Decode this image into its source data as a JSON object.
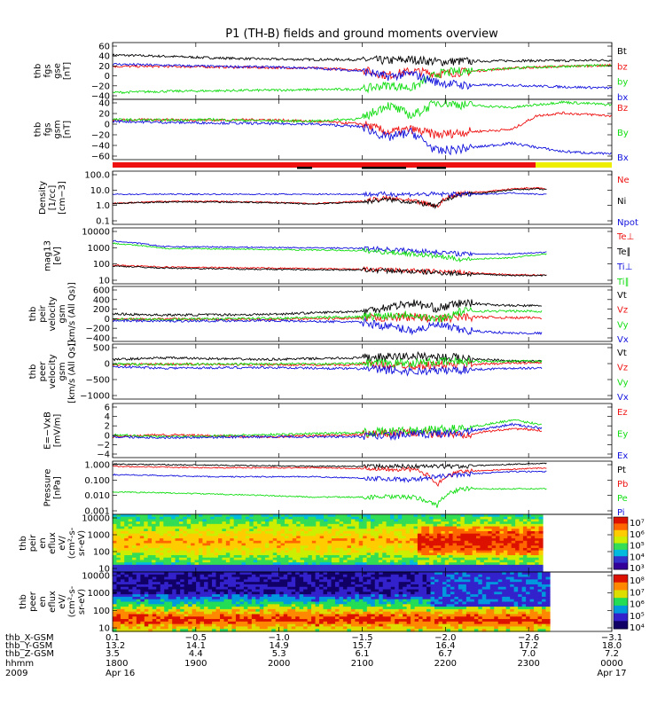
{
  "title": "P1 (TH-B) fields and ground moments overview",
  "colors": {
    "black": "#000000",
    "red": "#ee1111",
    "green": "#11dd11",
    "blue": "#1111dd",
    "yellow": "#eeee00"
  },
  "chart_data": [
    {
      "type": "line",
      "ylabel": [
        "thb",
        "fgs",
        "gse",
        "[nT]"
      ],
      "ylim": [
        -40,
        60
      ],
      "yticks": [
        "60",
        "40",
        "20",
        "0",
        "−20",
        "−40"
      ],
      "legend": [
        {
          "name": "Bt",
          "color": "black"
        },
        {
          "name": "bz",
          "color": "red"
        },
        {
          "name": "by",
          "color": "green"
        },
        {
          "name": "bx",
          "color": "blue"
        }
      ],
      "series": [
        {
          "name": "Bt",
          "color": "black",
          "x": [
            0,
            0.1,
            0.2,
            0.3,
            0.4,
            0.5,
            0.55,
            0.6,
            0.65,
            0.7,
            0.8,
            0.9,
            1.0
          ],
          "y": [
            38,
            36,
            33,
            31,
            30,
            30,
            28,
            30,
            26,
            27,
            28,
            28,
            29
          ]
        },
        {
          "name": "bz",
          "color": "red",
          "x": [
            0,
            0.1,
            0.2,
            0.3,
            0.4,
            0.5,
            0.55,
            0.6,
            0.65,
            0.7,
            0.8,
            0.9,
            1.0
          ],
          "y": [
            18,
            18,
            17,
            16,
            15,
            12,
            2,
            10,
            5,
            8,
            15,
            18,
            20
          ]
        },
        {
          "name": "by",
          "color": "green",
          "x": [
            0,
            0.1,
            0.2,
            0.3,
            0.4,
            0.5,
            0.55,
            0.6,
            0.65,
            0.7,
            0.8,
            0.9,
            1.0
          ],
          "y": [
            -28,
            -26,
            -25,
            -24,
            -23,
            -22,
            -15,
            -20,
            5,
            10,
            15,
            18,
            20
          ]
        },
        {
          "name": "bx",
          "color": "blue",
          "x": [
            0,
            0.1,
            0.2,
            0.3,
            0.4,
            0.5,
            0.55,
            0.6,
            0.65,
            0.7,
            0.8,
            0.9,
            1.0
          ],
          "y": [
            22,
            20,
            18,
            17,
            15,
            10,
            0,
            5,
            -10,
            -15,
            -15,
            -18,
            -20
          ]
        }
      ]
    },
    {
      "type": "line",
      "ylabel": [
        "thb",
        "fgs",
        "gsm",
        "[nT]"
      ],
      "ylim": [
        -70,
        40
      ],
      "yticks": [
        "40",
        "20",
        "0",
        "−20",
        "−40",
        "−60"
      ],
      "legend": [
        {
          "name": "Bz",
          "color": "red"
        },
        {
          "name": "By",
          "color": "green"
        },
        {
          "name": "Bx",
          "color": "blue"
        }
      ],
      "series": [
        {
          "name": "Bz",
          "color": "red",
          "x": [
            0,
            0.1,
            0.2,
            0.3,
            0.4,
            0.5,
            0.55,
            0.6,
            0.65,
            0.7,
            0.8,
            0.85,
            0.9,
            1.0
          ],
          "y": [
            2,
            3,
            2,
            3,
            0,
            -5,
            -20,
            -15,
            -25,
            -20,
            -15,
            10,
            15,
            10
          ]
        },
        {
          "name": "By",
          "color": "green",
          "x": [
            0,
            0.1,
            0.2,
            0.3,
            0.4,
            0.5,
            0.55,
            0.6,
            0.65,
            0.7,
            0.8,
            0.9,
            1.0
          ],
          "y": [
            3,
            2,
            3,
            1,
            0,
            5,
            30,
            10,
            35,
            30,
            25,
            35,
            30
          ]
        },
        {
          "name": "Bx",
          "color": "blue",
          "x": [
            0,
            0.1,
            0.2,
            0.3,
            0.4,
            0.5,
            0.55,
            0.6,
            0.65,
            0.7,
            0.8,
            0.9,
            1.0
          ],
          "y": [
            0,
            -2,
            -3,
            -4,
            -5,
            -10,
            -30,
            -20,
            -55,
            -50,
            -40,
            -55,
            -60
          ]
        }
      ]
    },
    {
      "type": "line",
      "log": true,
      "ylabel": [
        "Density",
        "[1/cc]",
        "[cm−3]"
      ],
      "ylim": [
        0.1,
        100
      ],
      "yticks": [
        "100.0",
        "10.0",
        "1.0",
        "0.1"
      ],
      "legend": [
        {
          "name": "Ne",
          "color": "red"
        },
        {
          "name": "Ni",
          "color": "black"
        },
        {
          "name": "Npot",
          "color": "blue"
        }
      ],
      "series": [
        {
          "name": "Ne",
          "color": "red",
          "x": [
            0,
            0.1,
            0.2,
            0.3,
            0.4,
            0.5,
            0.55,
            0.6,
            0.65,
            0.7,
            0.75,
            0.8,
            0.85,
            0.87
          ],
          "y": [
            1.5,
            2,
            2,
            1.8,
            1.5,
            2,
            3,
            2,
            1,
            6,
            7,
            10,
            12,
            10
          ]
        },
        {
          "name": "Ni",
          "color": "black",
          "x": [
            0,
            0.1,
            0.2,
            0.3,
            0.4,
            0.5,
            0.55,
            0.6,
            0.65,
            0.7,
            0.75,
            0.8,
            0.85,
            0.87
          ],
          "y": [
            1.5,
            1.8,
            1.8,
            1.7,
            1.4,
            1.8,
            2.5,
            1.8,
            1,
            5,
            6,
            9,
            10,
            9
          ]
        },
        {
          "name": "Npot",
          "color": "blue",
          "x": [
            0.7,
            0.75,
            0.8,
            0.85,
            0.87
          ],
          "y": [
            5,
            5,
            6,
            5,
            5
          ]
        }
      ]
    },
    {
      "type": "line",
      "log": true,
      "ylabel": [
        "mag13",
        "[eV]"
      ],
      "ylim": [
        10,
        10000
      ],
      "yticks": [
        "10000",
        "1000",
        "100",
        "10"
      ],
      "legend": [
        {
          "name": "Te⊥",
          "color": "red"
        },
        {
          "name": "Te∥",
          "color": "black"
        },
        {
          "name": "Ti⊥",
          "color": "blue"
        },
        {
          "name": "Ti∥",
          "color": "green"
        }
      ],
      "series": [
        {
          "name": "Te⊥",
          "color": "red",
          "x": [
            0,
            0.1,
            0.3,
            0.5,
            0.6,
            0.7,
            0.8,
            0.87
          ],
          "y": [
            100,
            80,
            70,
            60,
            50,
            40,
            30,
            30
          ]
        },
        {
          "name": "Te∥",
          "color": "black",
          "x": [
            0,
            0.1,
            0.3,
            0.5,
            0.6,
            0.7,
            0.8,
            0.87
          ],
          "y": [
            90,
            70,
            60,
            55,
            45,
            35,
            28,
            28
          ]
        },
        {
          "name": "Ti⊥",
          "color": "blue",
          "x": [
            0,
            0.1,
            0.3,
            0.5,
            0.6,
            0.7,
            0.8,
            0.87
          ],
          "y": [
            2000,
            1000,
            900,
            800,
            600,
            400,
            400,
            500
          ]
        },
        {
          "name": "Ti∥",
          "color": "green",
          "x": [
            0,
            0.1,
            0.3,
            0.5,
            0.6,
            0.7,
            0.8,
            0.87
          ],
          "y": [
            1500,
            800,
            700,
            600,
            400,
            200,
            250,
            400
          ]
        }
      ]
    },
    {
      "type": "line",
      "ylabel": [
        "thb",
        "peir",
        "velocity",
        "gsm",
        "[km/s (All Qs)]"
      ],
      "ylim": [
        -400,
        600
      ],
      "yticks": [
        "600",
        "400",
        "200",
        "0",
        "−200",
        "−400"
      ],
      "legend": [
        {
          "name": "Vt",
          "color": "black"
        },
        {
          "name": "Vz",
          "color": "red"
        },
        {
          "name": "Vy",
          "color": "green"
        },
        {
          "name": "Vx",
          "color": "blue"
        }
      ],
      "series": [
        {
          "name": "Vt",
          "color": "black",
          "x": [
            0,
            0.1,
            0.3,
            0.5,
            0.6,
            0.65,
            0.7,
            0.8,
            0.86
          ],
          "y": [
            100,
            80,
            90,
            150,
            300,
            200,
            300,
            250,
            250
          ]
        },
        {
          "name": "Vz",
          "color": "red",
          "x": [
            0,
            0.1,
            0.3,
            0.5,
            0.6,
            0.65,
            0.7,
            0.8,
            0.86
          ],
          "y": [
            0,
            10,
            0,
            20,
            50,
            0,
            50,
            30,
            30
          ]
        },
        {
          "name": "Vy",
          "color": "green",
          "x": [
            0,
            0.1,
            0.3,
            0.5,
            0.6,
            0.65,
            0.7,
            0.8,
            0.86
          ],
          "y": [
            10,
            0,
            20,
            50,
            100,
            0,
            150,
            150,
            150
          ]
        },
        {
          "name": "Vx",
          "color": "blue",
          "x": [
            0,
            0.1,
            0.3,
            0.5,
            0.6,
            0.65,
            0.7,
            0.8,
            0.86
          ],
          "y": [
            -20,
            -30,
            -20,
            -50,
            -200,
            -100,
            -200,
            -250,
            -250
          ]
        }
      ]
    },
    {
      "type": "line",
      "ylabel": [
        "thb",
        "peer",
        "velocity",
        "gsm",
        "[km/s (All Qs)]"
      ],
      "ylim": [
        -1000,
        600
      ],
      "yticks": [
        "500",
        "0",
        "−500",
        "−1000"
      ],
      "legend": [
        {
          "name": "Vt",
          "color": "black"
        },
        {
          "name": "Vz",
          "color": "red"
        },
        {
          "name": "Vy",
          "color": "green"
        },
        {
          "name": "Vx",
          "color": "blue"
        }
      ],
      "series": [
        {
          "name": "Vt",
          "color": "black",
          "x": [
            0,
            0.1,
            0.3,
            0.5,
            0.6,
            0.7,
            0.8,
            0.86
          ],
          "y": [
            150,
            200,
            150,
            200,
            250,
            200,
            100,
            100
          ]
        },
        {
          "name": "Vz",
          "color": "red",
          "x": [
            0,
            0.1,
            0.3,
            0.5,
            0.6,
            0.7,
            0.8,
            0.86
          ],
          "y": [
            0,
            20,
            0,
            0,
            -20,
            0,
            50,
            50
          ]
        },
        {
          "name": "Vy",
          "color": "green",
          "x": [
            0,
            0.1,
            0.3,
            0.5,
            0.6,
            0.7,
            0.8,
            0.86
          ],
          "y": [
            20,
            10,
            20,
            30,
            50,
            100,
            100,
            100
          ]
        },
        {
          "name": "Vx",
          "color": "blue",
          "x": [
            0,
            0.1,
            0.3,
            0.5,
            0.6,
            0.7,
            0.8,
            0.86
          ],
          "y": [
            -50,
            -100,
            -80,
            -120,
            -200,
            -150,
            -100,
            -100
          ]
        }
      ]
    },
    {
      "type": "line",
      "ylabel": [
        "E=−VxB",
        "[mV/m]"
      ],
      "ylim": [
        -5,
        8
      ],
      "yticks": [
        "6",
        "4",
        "2",
        "0",
        "−2",
        "−4"
      ],
      "legend": [
        {
          "name": "Ez",
          "color": "red"
        },
        {
          "name": "Ey",
          "color": "green"
        },
        {
          "name": "Ex",
          "color": "blue"
        }
      ],
      "series": [
        {
          "name": "Ez",
          "color": "red",
          "x": [
            0,
            0.1,
            0.3,
            0.5,
            0.6,
            0.7,
            0.8,
            0.86
          ],
          "y": [
            0,
            0.5,
            0,
            0.5,
            1,
            0.5,
            2,
            1.5
          ]
        },
        {
          "name": "Ey",
          "color": "green",
          "x": [
            0,
            0.1,
            0.3,
            0.5,
            0.6,
            0.7,
            0.8,
            0.86
          ],
          "y": [
            0.5,
            0,
            0.5,
            1,
            1.5,
            2,
            4,
            3
          ]
        },
        {
          "name": "Ex",
          "color": "blue",
          "x": [
            0,
            0.1,
            0.3,
            0.5,
            0.6,
            0.7,
            0.8,
            0.86
          ],
          "y": [
            0,
            -0.2,
            0,
            0,
            0.5,
            1,
            3,
            2
          ]
        }
      ]
    },
    {
      "type": "line",
      "log": true,
      "ylabel": [
        "Pressure",
        "[nPa]"
      ],
      "ylim": [
        0.001,
        1.2
      ],
      "yticks": [
        "1.000",
        "0.100",
        "0.010",
        "0.001"
      ],
      "legend": [
        {
          "name": "Pt",
          "color": "black"
        },
        {
          "name": "Pb",
          "color": "red"
        },
        {
          "name": "Pe",
          "color": "green"
        },
        {
          "name": "Pi",
          "color": "blue"
        }
      ],
      "series": [
        {
          "name": "Pt",
          "color": "black",
          "x": [
            0,
            0.2,
            0.4,
            0.6,
            0.7,
            0.8,
            0.87
          ],
          "y": [
            0.8,
            0.7,
            0.6,
            0.6,
            0.6,
            0.8,
            0.9
          ]
        },
        {
          "name": "Pb",
          "color": "red",
          "x": [
            0,
            0.2,
            0.4,
            0.6,
            0.65,
            0.7,
            0.8,
            0.87
          ],
          "y": [
            0.6,
            0.5,
            0.5,
            0.4,
            0.05,
            0.3,
            0.4,
            0.5
          ]
        },
        {
          "name": "Pe",
          "color": "green",
          "x": [
            0,
            0.2,
            0.4,
            0.6,
            0.65,
            0.7,
            0.8,
            0.87
          ],
          "y": [
            0.02,
            0.015,
            0.01,
            0.01,
            0.003,
            0.03,
            0.03,
            0.03
          ]
        },
        {
          "name": "Pi",
          "color": "blue",
          "x": [
            0,
            0.2,
            0.4,
            0.6,
            0.7,
            0.8,
            0.87
          ],
          "y": [
            0.2,
            0.15,
            0.15,
            0.1,
            0.2,
            0.3,
            0.3
          ]
        }
      ]
    },
    {
      "type": "heatmap",
      "ylabel": [
        "thb",
        "peir",
        "en",
        "eflux",
        "eV/",
        "(cm²-s-",
        "sr-eV)"
      ],
      "ylim": [
        5,
        20000
      ],
      "yticks": [
        "10000",
        "1000",
        "100",
        "10"
      ],
      "colorbar_ticks": [
        "10⁷",
        "10⁶",
        "10⁵",
        "10⁴",
        "10³"
      ]
    },
    {
      "type": "heatmap",
      "ylabel": [
        "thb",
        "peer",
        "en",
        "eflux",
        "eV/",
        "(cm²-s-",
        "sr-eV)"
      ],
      "ylim": [
        5,
        20000
      ],
      "yticks": [
        "10000",
        "1000",
        "100",
        "10"
      ],
      "colorbar_ticks": [
        "10⁸",
        "10⁷",
        "10⁶",
        "10⁵",
        "10⁴"
      ]
    }
  ],
  "ephemeris": {
    "row_labels": [
      "thb_X-GSM",
      "thb_Y-GSM",
      "thb_Z-GSM",
      "hhmm",
      "2009"
    ],
    "columns": [
      {
        "values": [
          "0.1",
          "13.2",
          "3.5",
          "1800",
          "Apr 16"
        ]
      },
      {
        "values": [
          "−0.5",
          "14.1",
          "4.4",
          "1900",
          ""
        ]
      },
      {
        "values": [
          "−1.0",
          "14.9",
          "5.3",
          "2000",
          ""
        ]
      },
      {
        "values": [
          "−1.5",
          "15.7",
          "6.1",
          "2100",
          ""
        ]
      },
      {
        "values": [
          "−2.0",
          "16.4",
          "6.7",
          "2200",
          ""
        ]
      },
      {
        "values": [
          "−2.6",
          "17.2",
          "7.0",
          "2300",
          ""
        ]
      },
      {
        "values": [
          "−3.1",
          "18.0",
          "7.2",
          "0000",
          "Apr 17"
        ]
      }
    ]
  }
}
